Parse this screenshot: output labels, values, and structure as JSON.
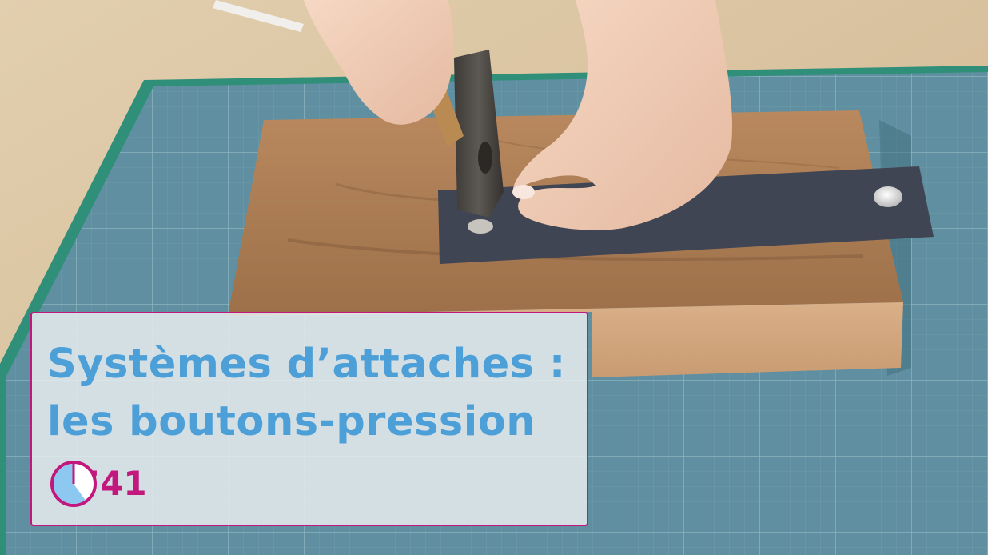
{
  "title": {
    "line1": "Systèmes d’attaches :",
    "line2": "les boutons-pression"
  },
  "duration": {
    "text": "1’41",
    "icon": "clock-pie-icon",
    "elapsed_fraction": 0.6
  },
  "colors": {
    "title": "#4d9fd8",
    "accent": "#c2177d",
    "card_background": "#e8ecef",
    "clock_fill": "#8cc8ef"
  }
}
